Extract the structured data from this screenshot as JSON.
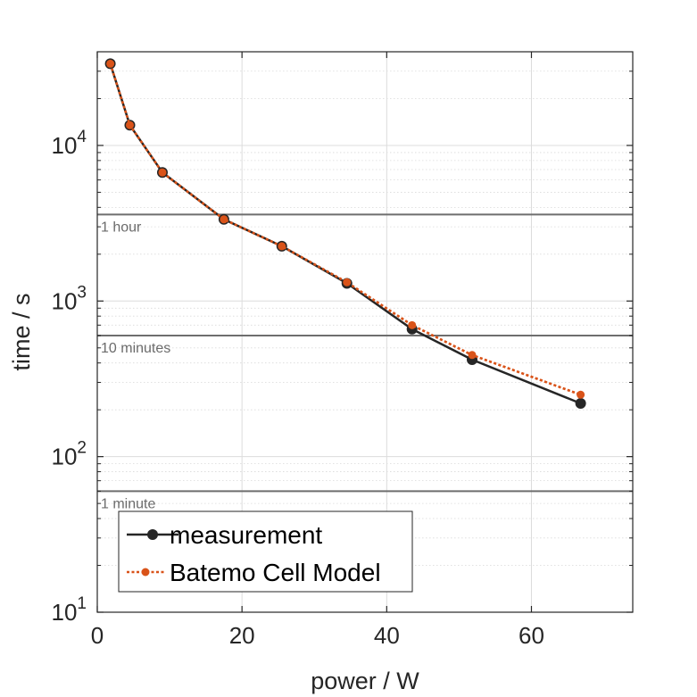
{
  "chart_data": {
    "type": "line",
    "xlabel": "power / W",
    "ylabel": "time / s",
    "xlim": [
      0,
      74
    ],
    "ylim": [
      10,
      40000
    ],
    "yscale": "log",
    "grid": true,
    "x_ticks": [
      0,
      20,
      40,
      60
    ],
    "y_ticks": [
      {
        "value": 10,
        "base": "10",
        "exp": "1"
      },
      {
        "value": 100,
        "base": "10",
        "exp": "2"
      },
      {
        "value": 1000,
        "base": "10",
        "exp": "3"
      },
      {
        "value": 10000,
        "base": "10",
        "exp": "4"
      }
    ],
    "reference_lines": [
      {
        "y": 3600,
        "label": "1 hour"
      },
      {
        "y": 600,
        "label": "10 minutes"
      },
      {
        "y": 60,
        "label": "1 minute"
      }
    ],
    "legend_position": "bottom-left",
    "series": [
      {
        "name": "measurement",
        "color": "#262626",
        "style": "solid",
        "points": [
          [
            1.8,
            33500
          ],
          [
            4.5,
            13500
          ],
          [
            9.0,
            6700
          ],
          [
            17.5,
            3350
          ],
          [
            25.5,
            2250
          ],
          [
            34.5,
            1300
          ],
          [
            43.5,
            660
          ],
          [
            51.8,
            420
          ],
          [
            66.8,
            220
          ]
        ]
      },
      {
        "name": "Batemo Cell Model",
        "color": "#d95319",
        "style": "dashed",
        "points": [
          [
            1.8,
            33500
          ],
          [
            4.5,
            13500
          ],
          [
            9.0,
            6700
          ],
          [
            17.5,
            3350
          ],
          [
            25.5,
            2250
          ],
          [
            34.5,
            1320
          ],
          [
            43.5,
            700
          ],
          [
            51.8,
            450
          ],
          [
            66.8,
            250
          ]
        ]
      }
    ]
  }
}
